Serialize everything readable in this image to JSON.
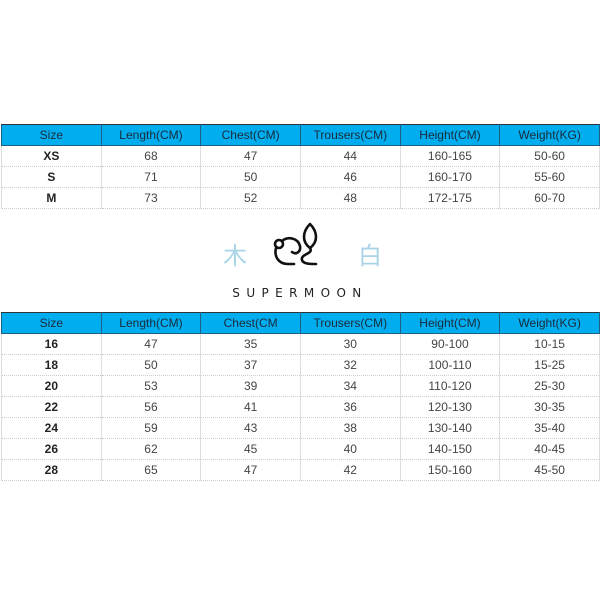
{
  "adult_table": {
    "headers": [
      "Size",
      "Length(CM)",
      "Chest(CM)",
      "Trousers(CM)",
      "Height(CM)",
      "Weight(KG)"
    ],
    "rows": [
      [
        "XS",
        "68",
        "47",
        "44",
        "160-165",
        "50-60"
      ],
      [
        "S",
        "71",
        "50",
        "46",
        "160-170",
        "55-60"
      ],
      [
        "M",
        "73",
        "52",
        "48",
        "172-175",
        "60-70"
      ]
    ]
  },
  "logo": {
    "left_char": "木",
    "right_char": "白",
    "brand": "SUPERMOON",
    "icon": "rabbit-icon"
  },
  "kids_table": {
    "headers": [
      "Size",
      "Length(CM)",
      "Chest(CM",
      "Trousers(CM)",
      "Height(CM)",
      "Weight(KG)"
    ],
    "rows": [
      [
        "16",
        "47",
        "35",
        "30",
        "90-100",
        "10-15"
      ],
      [
        "18",
        "50",
        "37",
        "32",
        "100-110",
        "15-25"
      ],
      [
        "20",
        "53",
        "39",
        "34",
        "110-120",
        "25-30"
      ],
      [
        "22",
        "56",
        "41",
        "36",
        "120-130",
        "30-35"
      ],
      [
        "24",
        "59",
        "43",
        "38",
        "130-140",
        "35-40"
      ],
      [
        "26",
        "62",
        "45",
        "40",
        "140-150",
        "40-45"
      ],
      [
        "28",
        "65",
        "47",
        "42",
        "150-160",
        "45-50"
      ]
    ]
  },
  "colors": {
    "header_bg": "#00aeef",
    "logo_accent": "#a9d4e8"
  }
}
